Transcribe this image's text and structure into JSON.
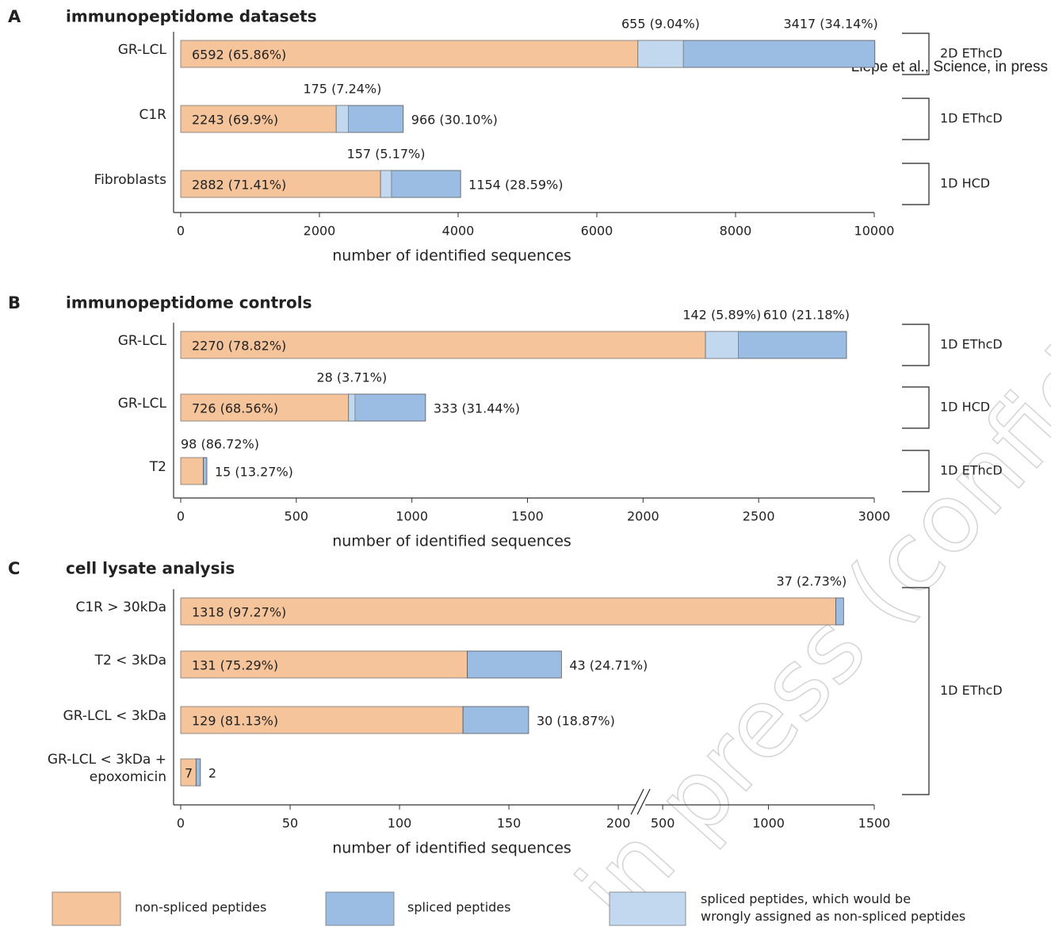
{
  "figure_note": "Liepe et al., Science, in press",
  "watermark": "in press (confidential)",
  "chart_data": [
    {
      "type": "bar",
      "orientation": "horizontal",
      "stacked": true,
      "panel": "A",
      "title": "immunopeptidome datasets",
      "xlabel": "number of identified sequences",
      "categories": [
        "GR-LCL",
        "C1R",
        "Fibroblasts"
      ],
      "series": [
        {
          "color": "#f5c49a",
          "values": [
            6592,
            2243,
            2882
          ],
          "value_labels": [
            "6592 (65.86%)",
            "2243 (69.9%)",
            "2882 (71.41%)"
          ]
        },
        {
          "color": "#9bbde3",
          "values": [
            3417,
            966,
            1154
          ],
          "value_labels": [
            "3417 (34.14%)",
            "966 (30.10%)",
            "1154 (28.59%)"
          ]
        },
        {
          "color": "#c2d8ef",
          "values": [
            655,
            175,
            157
          ],
          "value_labels": [
            "655 (9.04%)",
            "175 (7.24%)",
            "157 (5.17%)"
          ]
        }
      ],
      "xlim": [
        0,
        10000
      ],
      "xticks": [
        0,
        2000,
        4000,
        6000,
        8000,
        10000
      ],
      "brackets": [
        "2D EThcD",
        "1D EThcD",
        "1D HCD"
      ]
    },
    {
      "type": "bar",
      "orientation": "horizontal",
      "stacked": true,
      "panel": "B",
      "title": "immunopeptidome controls",
      "xlabel": "number of identified sequences",
      "categories": [
        "GR-LCL",
        "GR-LCL",
        "T2"
      ],
      "series": [
        {
          "color": "#f5c49a",
          "values": [
            2270,
            726,
            98
          ],
          "value_labels": [
            "2270 (78.82%)",
            "726 (68.56%)",
            "98 (86.72%)"
          ]
        },
        {
          "color": "#9bbde3",
          "values": [
            610,
            333,
            15
          ],
          "value_labels": [
            "610 (21.18%)",
            "333 (31.44%)",
            "15 (13.27%)"
          ]
        },
        {
          "color": "#c2d8ef",
          "values": [
            142,
            28,
            null
          ],
          "value_labels": [
            "142 (5.89%)",
            "28 (3.71%)",
            null
          ]
        }
      ],
      "xlim": [
        0,
        3000
      ],
      "xticks": [
        0,
        500,
        1000,
        1500,
        2000,
        2500,
        3000
      ],
      "brackets": [
        "1D EThcD",
        "1D HCD",
        "1D EThcD"
      ]
    },
    {
      "type": "bar",
      "orientation": "horizontal",
      "stacked": true,
      "panel": "C",
      "title": "cell lysate analysis",
      "xlabel": "number of identified sequences",
      "categories": [
        "C1R > 30kDa",
        "T2 < 3kDa",
        "GR-LCL < 3kDa",
        "GR-LCL < 3kDa +\nepoxomicin"
      ],
      "series": [
        {
          "color": "#f5c49a",
          "values": [
            1318,
            131,
            129,
            7
          ],
          "value_labels": [
            "1318 (97.27%)",
            "131 (75.29%)",
            "129 (81.13%)",
            null
          ]
        },
        {
          "color": "#9bbde3",
          "values": [
            37,
            43,
            30,
            2
          ],
          "value_labels": [
            "37 (2.73%)",
            "43 (24.71%)",
            "30 (18.87%)",
            null
          ]
        }
      ],
      "xlim": [
        0,
        1500
      ],
      "xbreak": [
        200,
        500
      ],
      "xticks": [
        0,
        50,
        100,
        150,
        200,
        500,
        1000,
        1500
      ],
      "brackets": [
        "1D EThcD"
      ]
    }
  ],
  "legend": [
    {
      "label": "non-spliced peptides",
      "color": "#f5c49a"
    },
    {
      "label": "spliced peptides",
      "color": "#9bbde3"
    },
    {
      "label": "spliced peptides, which would be\nwrongly assigned as non-spliced peptides",
      "color": "#c2d8ef"
    }
  ]
}
